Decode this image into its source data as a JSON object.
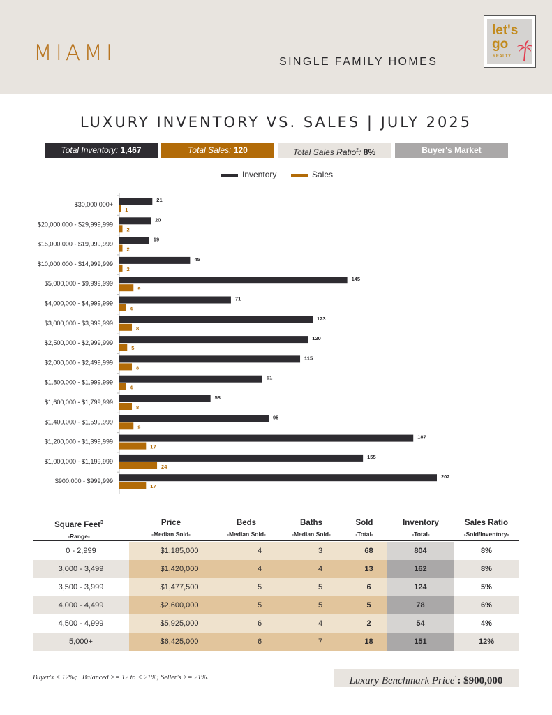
{
  "header": {
    "city": "MIAMI",
    "subtitle": "SINGLE FAMILY HOMES",
    "logo": {
      "line1": "let's",
      "line2": "go",
      "line3": "REALTY",
      "icon": "palm-tree-icon"
    }
  },
  "title": "LUXURY INVENTORY VS. SALES | JULY 2025",
  "stats": {
    "inventory_label": "Total Inventory:",
    "inventory_value": "1,467",
    "sales_label": "Total Sales:",
    "sales_value": "120",
    "ratio_label": "Total Sales Ratio",
    "ratio_sup": "2",
    "ratio_colon": ":",
    "ratio_value": "8%",
    "market": "Buyer's Market"
  },
  "colors": {
    "inventory": "#2e2c31",
    "sales": "#b26b08",
    "band": "#e8e4df"
  },
  "chart_data": {
    "type": "bar",
    "orientation": "horizontal",
    "categories": [
      "$30,000,000+",
      "$20,000,000 - $29,999,999",
      "$15,000,000 - $19,999,999",
      "$10,000,000 - $14,999,999",
      "$5,000,000 - $9,999,999",
      "$4,000,000 - $4,999,999",
      "$3,000,000 - $3,999,999",
      "$2,500,000 - $2,999,999",
      "$2,000,000 - $2,499,999",
      "$1,800,000 - $1,999,999",
      "$1,600,000 - $1,799,999",
      "$1,400,000 - $1,599,999",
      "$1,200,000 - $1,399,999",
      "$1,000,000 - $1,199,999",
      "$900,000 - $999,999"
    ],
    "series": [
      {
        "name": "Inventory",
        "values": [
          21,
          20,
          19,
          45,
          145,
          71,
          123,
          120,
          115,
          91,
          58,
          95,
          187,
          155,
          202
        ]
      },
      {
        "name": "Sales",
        "values": [
          1,
          2,
          2,
          2,
          9,
          4,
          8,
          5,
          8,
          4,
          8,
          9,
          17,
          24,
          17
        ]
      }
    ],
    "legend": "top-center",
    "xlim": [
      0,
      202
    ],
    "grid": false,
    "data_labels": true
  },
  "table": {
    "headers": [
      {
        "h1": "Square Feet",
        "sup": "3",
        "h2": "-Range-"
      },
      {
        "h1": "Price",
        "sup": "",
        "h2": "-Median Sold-"
      },
      {
        "h1": "Beds",
        "sup": "",
        "h2": "-Median Sold-"
      },
      {
        "h1": "Baths",
        "sup": "",
        "h2": "-Median Sold-"
      },
      {
        "h1": "Sold",
        "sup": "",
        "h2": "-Total-"
      },
      {
        "h1": "Inventory",
        "sup": "",
        "h2": "-Total-"
      },
      {
        "h1": "Sales Ratio",
        "sup": "",
        "h2": "-Sold/Inventory-"
      }
    ],
    "rows": [
      [
        "0 - 2,999",
        "$1,185,000",
        "4",
        "3",
        "68",
        "804",
        "8%"
      ],
      [
        "3,000 - 3,499",
        "$1,420,000",
        "4",
        "4",
        "13",
        "162",
        "8%"
      ],
      [
        "3,500 - 3,999",
        "$1,477,500",
        "5",
        "5",
        "6",
        "124",
        "5%"
      ],
      [
        "4,000 - 4,499",
        "$2,600,000",
        "5",
        "5",
        "5",
        "78",
        "6%"
      ],
      [
        "4,500 - 4,999",
        "$5,925,000",
        "6",
        "4",
        "2",
        "54",
        "4%"
      ],
      [
        "5,000+",
        "$6,425,000",
        "6",
        "7",
        "18",
        "151",
        "12%"
      ]
    ]
  },
  "footer": {
    "note": "Buyer's < 12%;   Balanced >= 12 to < 21%; Seller's >= 21%.",
    "benchmark_label": "Luxury Benchmark Price",
    "benchmark_sup": "1",
    "benchmark_colon": ":",
    "benchmark_value": "$900,000"
  }
}
